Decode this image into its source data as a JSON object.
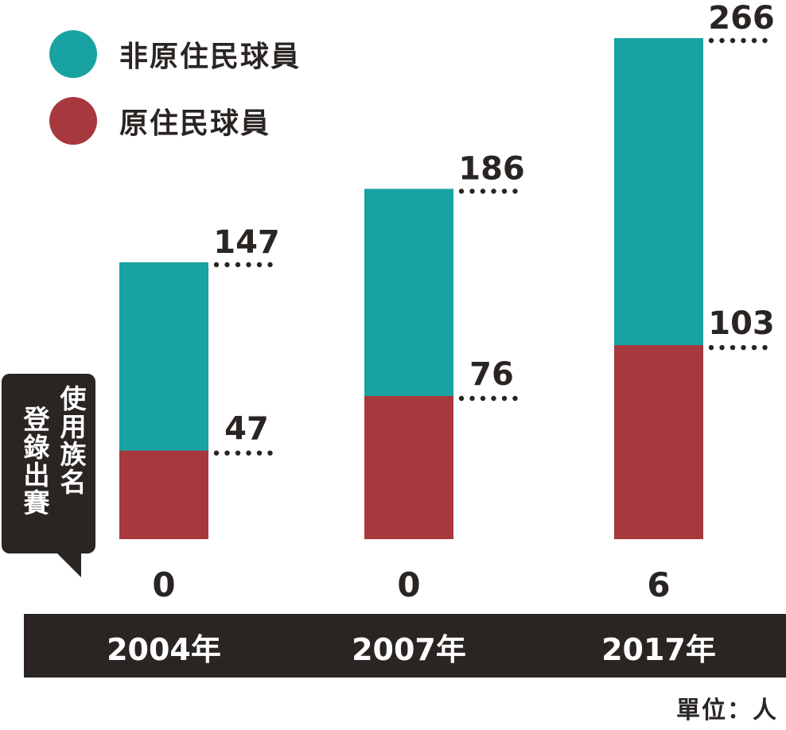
{
  "legend": [
    {
      "label": "非原住民球員",
      "color": "#18a2a2"
    },
    {
      "label": "原住民球員",
      "color": "#a7383e"
    }
  ],
  "callout": {
    "line1": "使用族名",
    "line2": "登錄出賽"
  },
  "unit_label": "單位：人",
  "colors": {
    "non_indigenous": "#18a2a2",
    "indigenous": "#a7383e",
    "dark": "#2a2522",
    "dots": "#2a2522"
  },
  "chart_data": {
    "type": "bar",
    "stacked": false,
    "categories": [
      "2004年",
      "2007年",
      "2017年"
    ],
    "series": [
      {
        "name": "非原住民球員",
        "values": [
          147,
          186,
          266
        ]
      },
      {
        "name": "原住民球員",
        "values": [
          47,
          76,
          103
        ]
      }
    ],
    "extra_row": {
      "label": "使用族名登錄出賽",
      "values": [
        0,
        0,
        6
      ]
    },
    "unit": "單位：人",
    "xlabel": "",
    "ylabel": "",
    "ylim": [
      0,
      280
    ],
    "grid": false,
    "legend_position": "top-left"
  }
}
